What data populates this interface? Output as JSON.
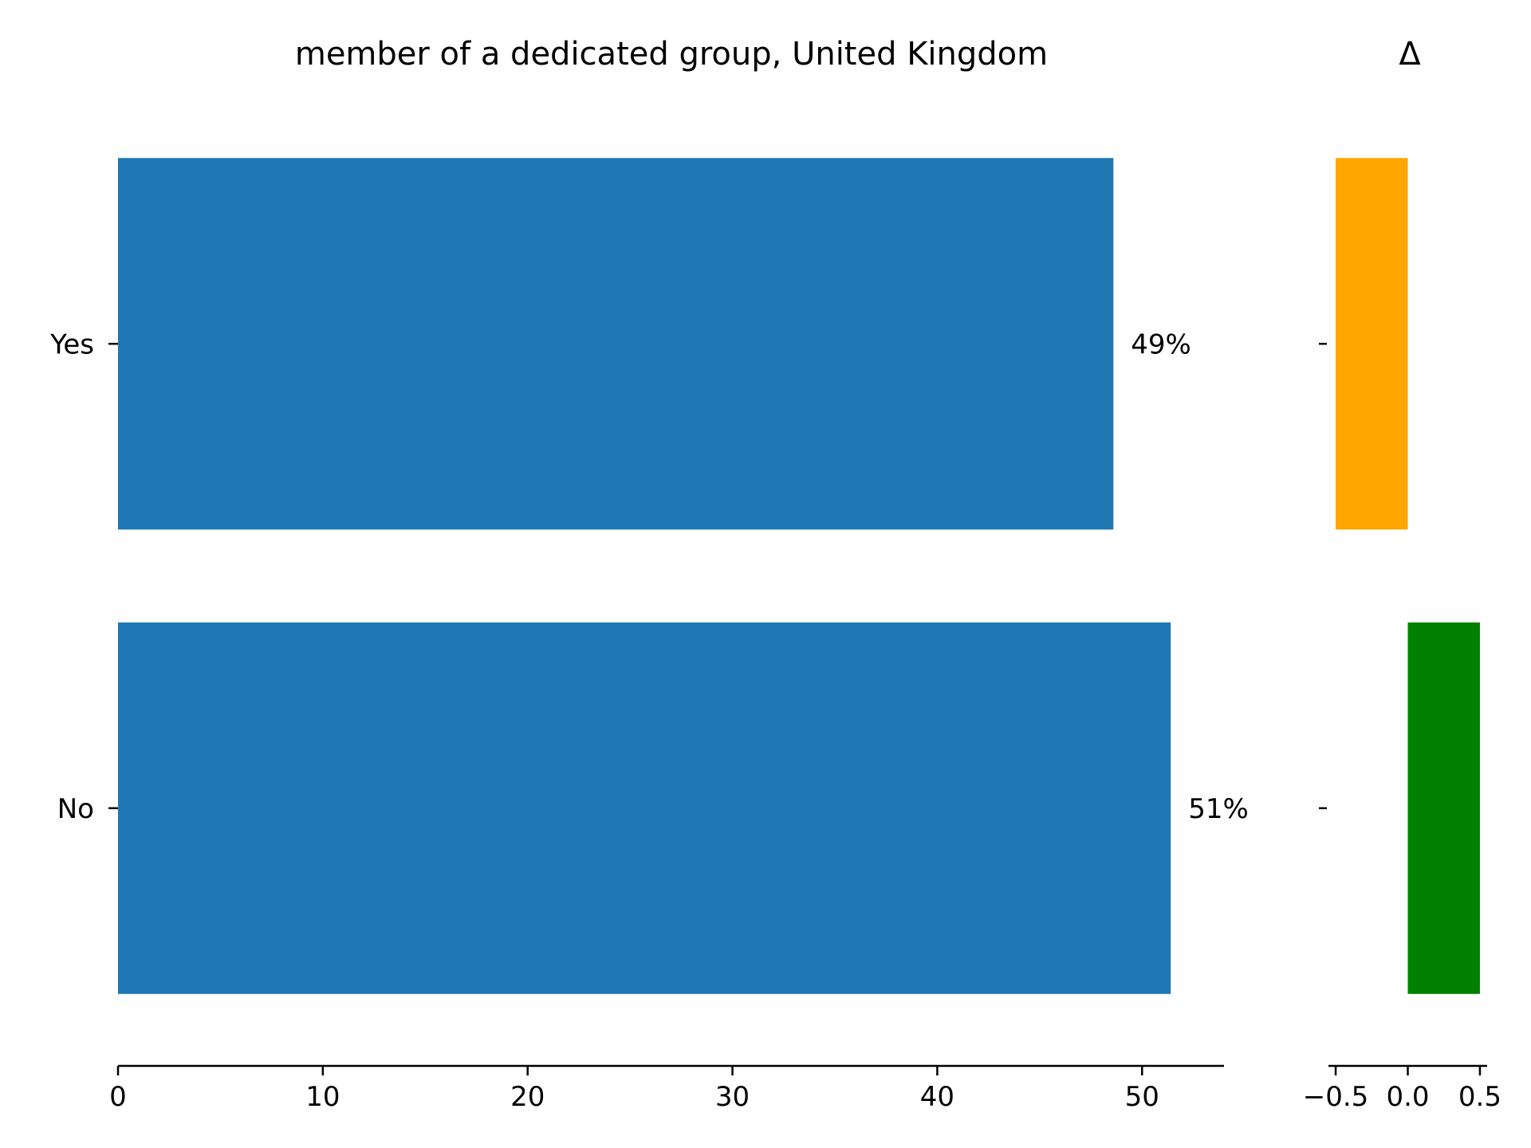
{
  "chart_data": [
    {
      "type": "bar",
      "orientation": "horizontal",
      "title": "member of a dedicated group, United Kingdom",
      "categories": [
        "Yes",
        "No"
      ],
      "values": [
        48.6,
        51.4
      ],
      "value_labels": [
        "49%",
        "51%"
      ],
      "xlim": [
        0,
        54
      ],
      "xticks": [
        0,
        10,
        20,
        30,
        40,
        50
      ],
      "xtick_labels": [
        "0",
        "10",
        "20",
        "30",
        "40",
        "50"
      ],
      "xlabel": "",
      "ylabel": "",
      "grid": false,
      "bar_color": "#1f77b4"
    },
    {
      "type": "bar",
      "orientation": "horizontal",
      "title": "Δ",
      "categories": [
        "Yes",
        "No"
      ],
      "values": [
        -0.5,
        0.5
      ],
      "colors": [
        "#ffa500",
        "#008000"
      ],
      "xlim": [
        -0.55,
        0.55
      ],
      "xticks": [
        -0.5,
        0.0,
        0.5
      ],
      "xtick_labels": [
        "−0.5",
        "0.0",
        "0.5"
      ],
      "xlabel": "",
      "ylabel": "",
      "grid": false
    }
  ]
}
